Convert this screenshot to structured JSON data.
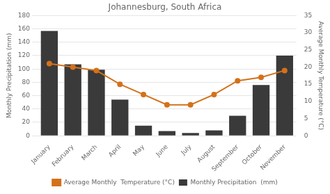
{
  "chart_data": {
    "type": "bar",
    "title": "Johannesburg, South Africa",
    "categories": [
      "January",
      "February",
      "March",
      "April",
      "May",
      "June",
      "July",
      "August",
      "September",
      "October",
      "November"
    ],
    "series": [
      {
        "name": "Monthly Precipitation  (mm)",
        "type": "bar",
        "color": "#3a3a3a",
        "values": [
          157,
          107,
          99,
          54,
          15,
          7,
          4,
          8,
          30,
          76,
          120
        ]
      },
      {
        "name": "Average Monthly  Temperature (°C)",
        "type": "line",
        "color": "#d4711a",
        "marker": "circle",
        "axis": "y2",
        "values": [
          21,
          20,
          19,
          15,
          12,
          9,
          9,
          12,
          16,
          17,
          19
        ]
      }
    ],
    "ylabel": "Monthly Precipitation (mm)",
    "y2label": "Average Monthly Temperature (°C)",
    "ylim": [
      0,
      180
    ],
    "yticks": [
      0,
      20,
      40,
      60,
      80,
      100,
      120,
      140,
      160,
      180
    ],
    "y2lim": [
      0,
      35
    ],
    "y2ticks": [
      0,
      5,
      10,
      15,
      20,
      25,
      30,
      35
    ],
    "grid": true,
    "legend": "bottom"
  }
}
